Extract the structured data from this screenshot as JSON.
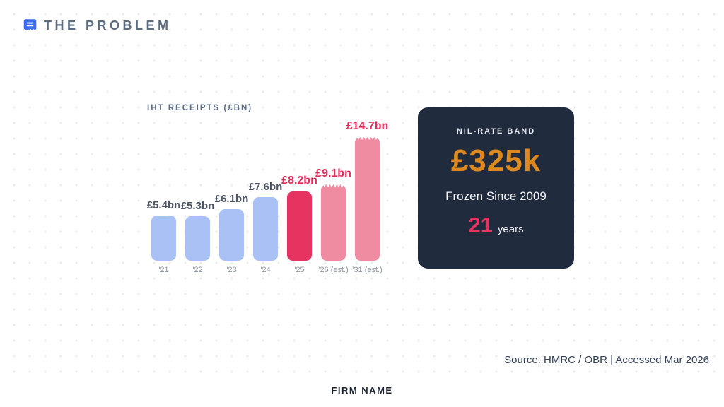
{
  "header": {
    "title": "THE PROBLEM",
    "icon": "receipt-icon",
    "icon_color": "#3d6cf2"
  },
  "chart_data": {
    "type": "bar",
    "title": "IHT RECEIPTS (£BN)",
    "categories": [
      "'21",
      "'22",
      "'23",
      "'24",
      "'25",
      "'26 (est.)",
      "'31 (est.)"
    ],
    "values": [
      5.4,
      5.3,
      6.1,
      7.6,
      8.2,
      9.1,
      14.7
    ],
    "labels": [
      "£5.4bn",
      "£5.3bn",
      "£6.1bn",
      "£7.6bn",
      "£8.2bn",
      "£9.1bn",
      "£14.7bn"
    ],
    "bar_styles": [
      "historic",
      "historic",
      "historic",
      "historic",
      "current",
      "estimate",
      "estimate"
    ],
    "xlabel": "",
    "ylabel": "IHT receipts (£bn)",
    "ylim": [
      0,
      14.7
    ],
    "grid": false,
    "legend": "none",
    "colors": {
      "historic": "#a9c1f4",
      "current": "#e5345f",
      "estimate": "#ef8ca1",
      "label_historic": "#4d5566",
      "label_highlight": "#e62e5c",
      "axis_label": "#8a93a4"
    }
  },
  "card": {
    "label": "NIL-RATE BAND",
    "value": "£325k",
    "subtitle": "Frozen Since 2009",
    "years_number": "21",
    "years_label": "years",
    "colors": {
      "bg": "#212b3e",
      "value": "#de891f",
      "years": "#e9325f"
    }
  },
  "footer": {
    "source": "Source: HMRC / OBR | Accessed Mar 2026",
    "firm_name": "FIRM NAME"
  }
}
